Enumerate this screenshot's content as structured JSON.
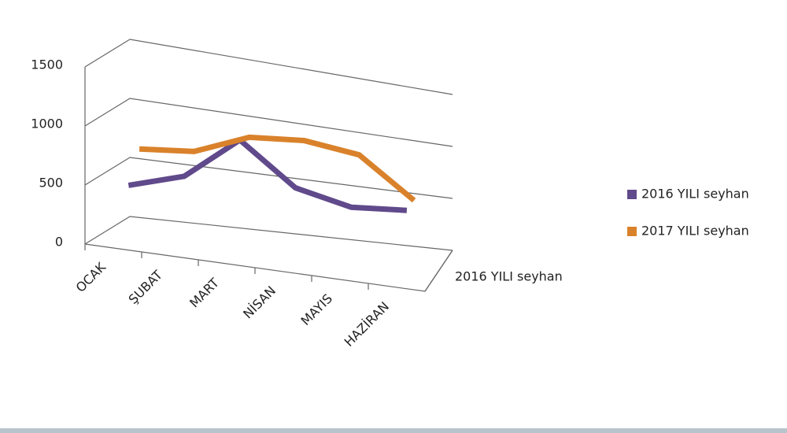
{
  "chart_data": {
    "type": "line3d",
    "categories": [
      "OCAK",
      "ŞUBAT",
      "MART",
      "NİSAN",
      "MAYIS",
      "HAZİRAN"
    ],
    "series": [
      {
        "name": "2016 YILI seyhan",
        "color": "#604a8b",
        "values": [
          450,
          600,
          1000,
          650,
          550,
          600
        ]
      },
      {
        "name": "2017 YILI seyhan",
        "color": "#d9822b",
        "values": [
          700,
          750,
          950,
          1000,
          950,
          600
        ]
      }
    ],
    "depth_label": "2016 YILI seyhan",
    "ylim": [
      0,
      1500
    ],
    "yticks": [
      0,
      500,
      1000,
      1500
    ],
    "grid": true
  }
}
